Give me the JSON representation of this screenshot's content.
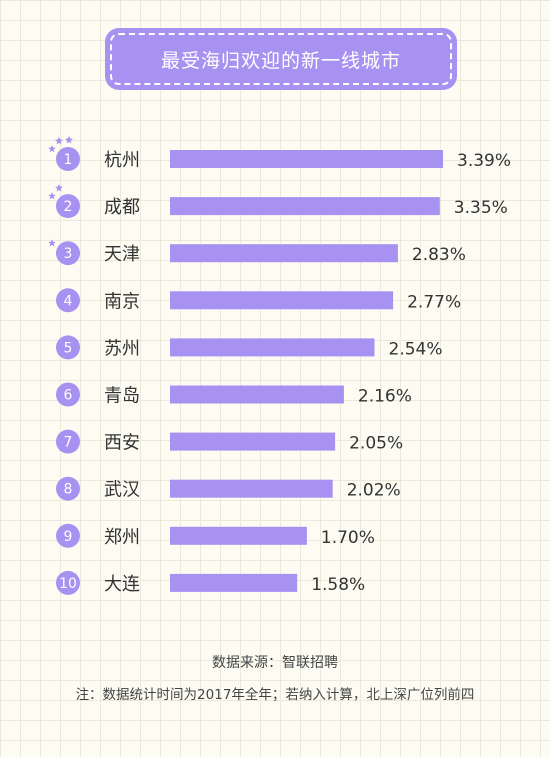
{
  "title": "最受海归欢迎的新一线城市",
  "chart_data": {
    "type": "bar",
    "orientation": "horizontal",
    "ranks": [
      "1",
      "2",
      "3",
      "4",
      "5",
      "6",
      "7",
      "8",
      "9",
      "10"
    ],
    "categories": [
      "杭州",
      "成都",
      "天津",
      "南京",
      "苏州",
      "青岛",
      "西安",
      "武汉",
      "郑州",
      "大连"
    ],
    "values": [
      3.39,
      3.35,
      2.83,
      2.77,
      2.54,
      2.16,
      2.05,
      2.02,
      1.7,
      1.58
    ],
    "value_labels": [
      "3.39%",
      "3.35%",
      "2.83%",
      "2.77%",
      "2.54%",
      "2.16%",
      "2.05%",
      "2.02%",
      "1.70%",
      "1.58%"
    ],
    "star_counts": [
      3,
      2,
      1,
      0,
      0,
      0,
      0,
      0,
      0,
      0
    ],
    "xlim": [
      0,
      3.39
    ],
    "grid": false,
    "legend": "none"
  },
  "footer": {
    "source": "数据来源：智联招聘",
    "note": "注：数据统计时间为2017年全年；若纳入计算，北上深广位列前四"
  },
  "colors": {
    "bar": "#a791f1",
    "badge": "#a791f1",
    "title_bg": "#a791f1",
    "text": "#333333",
    "background": "#fdfcf2"
  }
}
